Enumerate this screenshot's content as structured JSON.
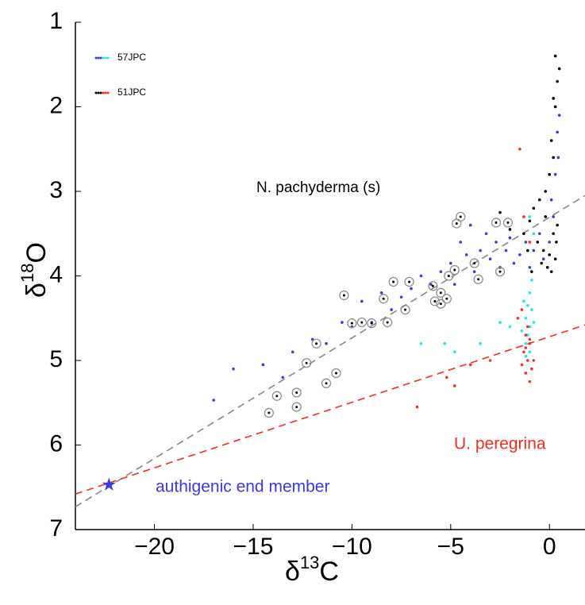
{
  "chart_data": {
    "type": "scatter",
    "xlabel": {
      "symbol": "δ",
      "sup": "13",
      "element": "C"
    },
    "ylabel": {
      "symbol": "δ",
      "sup": "18",
      "element": "O"
    },
    "xlim": [
      -24,
      1.8
    ],
    "ylim": [
      1,
      7
    ],
    "y_inverted": true,
    "xticks": [
      {
        "value": -20,
        "label": "−20"
      },
      {
        "value": -15,
        "label": "−15"
      },
      {
        "value": -10,
        "label": "−10"
      },
      {
        "value": -5,
        "label": "−5"
      },
      0
    ],
    "yticks": [
      1,
      2,
      3,
      4,
      5,
      6,
      7
    ],
    "series": [
      {
        "name": "57JPC",
        "color": "#3a3ae0",
        "x": [
          -17,
          -16,
          -14.5,
          -13.5,
          -13,
          -12,
          -11.3,
          -10.5,
          -10,
          -9.5,
          -9,
          -8.5,
          -8,
          -7.5,
          -7,
          -6.5,
          -6,
          -5.5,
          -5,
          -4.5,
          -4.2,
          -4,
          -3.5,
          -3.2,
          -3,
          -2.7,
          -2.5,
          -2.2,
          -2,
          -1.8,
          -1.5,
          -1.2,
          -1,
          -0.8,
          -0.5,
          -0.3,
          0,
          0.2,
          0.3,
          0.4,
          0.5,
          0.45,
          0.1,
          -3.8,
          -4.8
        ],
        "values": [
          5.47,
          5.1,
          5.05,
          5.2,
          4.9,
          4.75,
          4.8,
          4.55,
          4.6,
          4.3,
          4.55,
          4.2,
          4.4,
          4.25,
          4.15,
          4.0,
          4.1,
          3.95,
          3.85,
          3.6,
          3.75,
          3.4,
          3.7,
          3.5,
          3.8,
          3.6,
          3.9,
          3.7,
          3.55,
          3.85,
          3.75,
          3.6,
          3.9,
          3.7,
          3.5,
          3.8,
          3.6,
          3.3,
          2.8,
          2.3,
          2.1,
          2.6,
          3.1,
          3.95,
          4.1
        ]
      },
      {
        "name": "51JPC",
        "color": "#000000",
        "x": [
          0.3,
          0.5,
          0.4,
          0.2,
          0.3,
          0.1,
          0.2,
          0,
          -0.2,
          -0.5,
          -0.8,
          -1,
          -1.3,
          -0.6,
          -0.3,
          0,
          0.3,
          -0.1,
          -0.4,
          -0.9,
          0.2,
          0.4,
          -1.1,
          -0.2,
          0.1,
          -2.0,
          -2.5,
          0.35
        ],
        "values": [
          1.4,
          1.55,
          1.7,
          1.9,
          2.0,
          2.4,
          2.6,
          2.8,
          3.0,
          3.1,
          3.2,
          3.35,
          3.5,
          3.6,
          3.7,
          3.75,
          3.8,
          3.9,
          3.85,
          3.95,
          3.5,
          3.4,
          3.7,
          3.3,
          3.95,
          3.45,
          3.25,
          3.6
        ]
      },
      {
        "name": "57JPC",
        "color": "#22e5e5",
        "x": [
          -1.3,
          -1.2,
          -1.0,
          -1.1,
          -0.9,
          -1.2,
          -1.0,
          -0.8,
          -1.4,
          -1.0,
          -0.9,
          -1.1,
          -2.0,
          -2.5,
          -3.5,
          -5.3,
          -4.8,
          -1.0,
          -0.8,
          -1.2,
          -6.5
        ],
        "values": [
          4.3,
          4.5,
          4.6,
          4.7,
          4.4,
          4.8,
          4.9,
          4.55,
          4.65,
          4.2,
          4.05,
          4.35,
          4.6,
          4.55,
          4.8,
          4.8,
          4.9,
          3.3,
          3.5,
          4.95,
          4.8
        ]
      },
      {
        "name": "51JPC",
        "color": "#f03020",
        "x": [
          -1.5,
          -1.3,
          -1.0,
          -1.4,
          -1.2,
          -1.0,
          -1.3,
          -1.1,
          -0.9,
          -1.2,
          -1.0,
          -0.8,
          -1.4,
          -1.1,
          -1.6,
          -3.0,
          -4.0,
          -5.2,
          -6.7,
          -4.8,
          -1.0,
          -1.2
        ],
        "values": [
          2.5,
          3.3,
          3.6,
          4.4,
          4.7,
          4.8,
          4.9,
          5.0,
          5.1,
          5.15,
          5.25,
          5.0,
          5.05,
          4.6,
          4.5,
          5.0,
          5.05,
          5.2,
          5.55,
          5.3,
          4.75,
          4.85
        ]
      }
    ],
    "circled": {
      "color": "#888888",
      "x": [
        -14.2,
        -13.8,
        -12.8,
        -12.8,
        -12.3,
        -11.8,
        -11.3,
        -10.8,
        -10.4,
        -10.0,
        -9.5,
        -9.0,
        -8.2,
        -8.4,
        -7.9,
        -7.1,
        -7.3,
        -5.9,
        -5.8,
        -5.5,
        -5.5,
        -5.2,
        -5.1,
        -4.8,
        -4.5,
        -4.7,
        -3.8,
        -3.6,
        -2.7,
        -2.5,
        -2.1
      ],
      "values": [
        5.62,
        5.42,
        5.38,
        5.55,
        5.03,
        4.8,
        5.27,
        5.15,
        4.23,
        4.56,
        4.55,
        4.56,
        4.55,
        4.27,
        4.07,
        4.07,
        4.4,
        4.12,
        4.3,
        4.2,
        4.33,
        4.27,
        4.0,
        3.93,
        3.3,
        3.38,
        3.85,
        4.04,
        3.37,
        3.95,
        3.37
      ]
    },
    "fit_lines": [
      {
        "color": "#888888",
        "x": [
          -24,
          1.8
        ],
        "values": [
          6.73,
          3.05
        ]
      },
      {
        "color": "#f03020",
        "x": [
          -24,
          1.8
        ],
        "values": [
          6.58,
          4.58
        ]
      }
    ],
    "end_member": {
      "x": -22.3,
      "y": 6.47,
      "color": "#3a3ae0"
    },
    "annotations": {
      "pachyderma": "N. pachyderma (s)",
      "peregrina": "U. peregrina",
      "end_member": "authigenic end member"
    }
  }
}
